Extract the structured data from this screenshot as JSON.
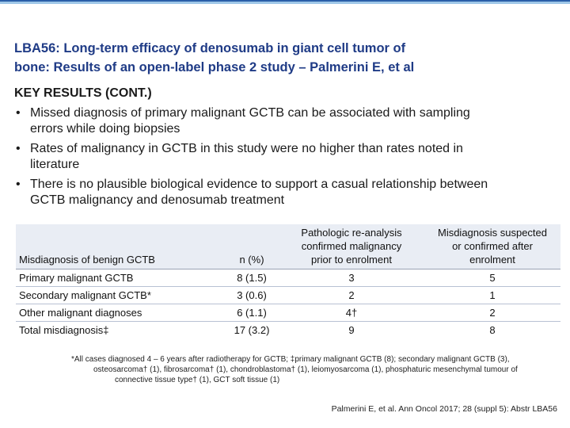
{
  "colors": {
    "title": "#1f3b86",
    "rule_top": "#2a5fa8",
    "rule_bottom": "#9fc7e8",
    "header_bg": "#e9edf4"
  },
  "title": {
    "line1": "LBA56: Long-term efficacy of denosumab in giant cell tumor of",
    "line2": "bone: Results of an open-label phase 2 study – Palmerini E, et al"
  },
  "key_results": {
    "heading": "KEY RESULTS (CONT.)",
    "bullet_char": "•",
    "bullets": [
      {
        "line1": "Missed diagnosis of primary malignant GCTB can be associated with sampling",
        "line2": "errors while doing biopsies"
      },
      {
        "line1": "Rates of malignancy in GCTB in this study were no higher than rates noted in",
        "line2": "literature"
      },
      {
        "line1": "There is no plausible biological evidence to support a casual relationship between",
        "line2": "GCTB malignancy and denosumab treatment"
      }
    ]
  },
  "table": {
    "headers": [
      {
        "text": "Misdiagnosis of benign GCTB"
      },
      {
        "text": "n (%)"
      },
      {
        "line1": "Pathologic re-analysis",
        "line2": "confirmed malignancy",
        "line3": "prior to enrolment"
      },
      {
        "line1": "Misdiagnosis suspected",
        "line2": "or confirmed after",
        "line3": "enrolment"
      }
    ],
    "rows": [
      [
        "Primary malignant GCTB",
        "8 (1.5)",
        "3",
        "5"
      ],
      [
        "Secondary malignant GCTB*",
        "3 (0.6)",
        "2",
        "1"
      ],
      [
        "Other malignant diagnoses",
        "6 (1.1)",
        "4†",
        "2"
      ],
      [
        "Total misdiagnosis‡",
        "17 (3.2)",
        "9",
        "8"
      ]
    ]
  },
  "footnote": {
    "line1": "*All cases diagnosed 4 – 6 years after radiotherapy for GCTB; ‡primary malignant GCTB (8); secondary malignant GCTB (3),",
    "line2": "osteosarcoma† (1), fibrosarcoma† (1), chondroblastoma† (1), leiomyosarcoma (1), phosphaturic mesenchymal tumour of",
    "line3": "connective tissue type† (1), GCT soft tissue (1)"
  },
  "citation": "Palmerini E, et al. Ann Oncol 2017; 28 (suppl 5): Abstr LBA56"
}
